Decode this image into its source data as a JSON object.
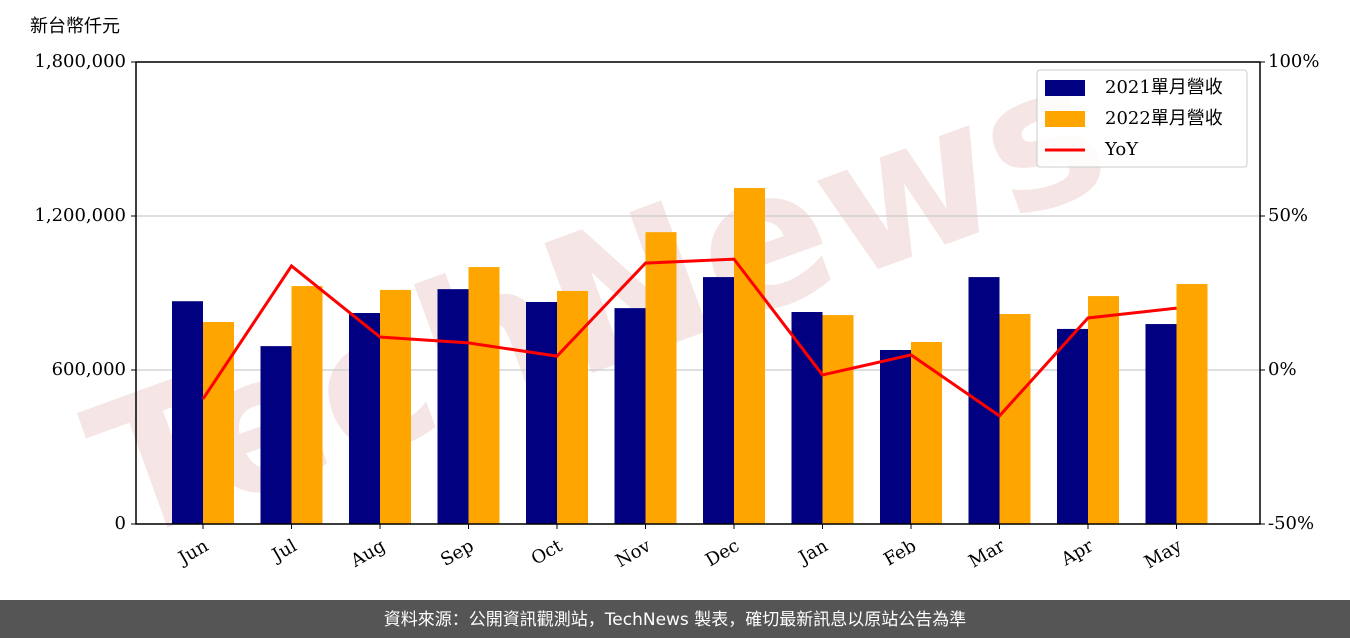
{
  "chart_data": {
    "type": "bar_line",
    "y_axis_title": "新台幣仟元",
    "watermark": "TechNews",
    "footer": "資料來源：公開資訊觀測站，TechNews 製表，確切最新訊息以原站公告為準",
    "categories": [
      "Jun",
      "Jul",
      "Aug",
      "Sep",
      "Oct",
      "Nov",
      "Dec",
      "Jan",
      "Feb",
      "Mar",
      "Apr",
      "May"
    ],
    "series": [
      {
        "name": "2021單月營收",
        "type": "bar",
        "color": "#000080",
        "values": [
          868000,
          693000,
          822000,
          915000,
          865000,
          841000,
          962000,
          826000,
          678000,
          962000,
          760000,
          779000
        ]
      },
      {
        "name": "2022單月營收",
        "type": "bar",
        "color": "#ffa500",
        "values": [
          787000,
          927000,
          912000,
          1001000,
          908000,
          1137000,
          1309000,
          814000,
          709000,
          818000,
          888000,
          935000
        ]
      },
      {
        "name": "YoY",
        "type": "line",
        "axis": "y2",
        "color": "#ff0000",
        "values": [
          -9.4,
          33.8,
          10.7,
          8.8,
          4.5,
          34.7,
          36.0,
          -1.6,
          4.9,
          -14.9,
          16.9,
          20.1
        ]
      }
    ],
    "ylim": [
      0,
      1800000
    ],
    "yticks": [
      0,
      {
        "value": 600000,
        "label": "600,000"
      },
      {
        "value": 1200000,
        "label": "1,200,000"
      },
      {
        "value": 1800000,
        "label": "1,800,000"
      }
    ],
    "y2lim": [
      -50,
      100
    ],
    "y2ticks": [
      {
        "value": -50,
        "label": "-50%"
      },
      {
        "value": 0,
        "label": "0%"
      },
      {
        "value": 50,
        "label": "50%"
      },
      {
        "value": 100,
        "label": "100%"
      }
    ],
    "grid": true,
    "legend": "upper right"
  }
}
